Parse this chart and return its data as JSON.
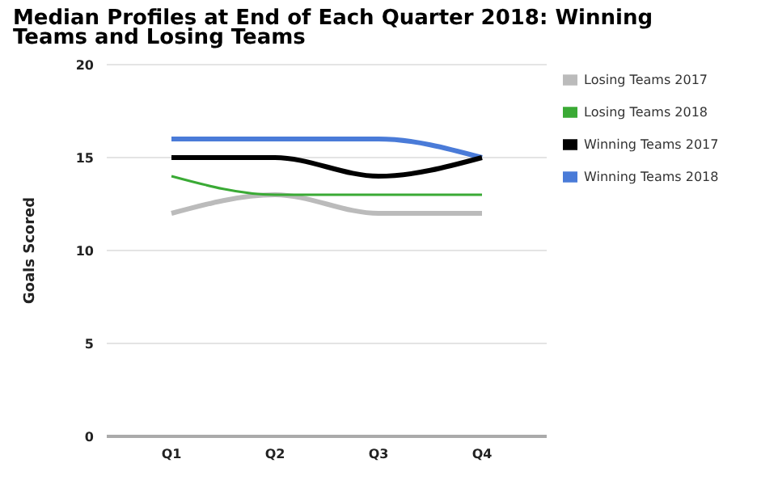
{
  "chart_data": {
    "type": "line",
    "title": "Median Profiles at End of Each Quarter  2018: Winning Teams and Losing Teams",
    "ylabel": "Goals Scored",
    "categories": [
      "Q1",
      "Q2",
      "Q3",
      "Q4"
    ],
    "series": [
      {
        "name": "Winning Teams 2018",
        "color": "#4a7bd8",
        "values": [
          16,
          16,
          16,
          15
        ]
      },
      {
        "name": "Winning Teams 2017",
        "color": "#000000",
        "values": [
          15,
          15,
          14,
          15
        ]
      },
      {
        "name": "Losing Teams 2017",
        "color": "#bbbbbb",
        "values": [
          12,
          13,
          12,
          12
        ]
      },
      {
        "name": "Losing Teams 2018",
        "color": "#3aaa35",
        "values": [
          14,
          13,
          13,
          13
        ]
      }
    ],
    "ylim": [
      0,
      20
    ],
    "yticks": [
      0,
      5,
      10,
      15,
      20
    ],
    "grid": "y",
    "legend": "right",
    "marker": "none"
  }
}
